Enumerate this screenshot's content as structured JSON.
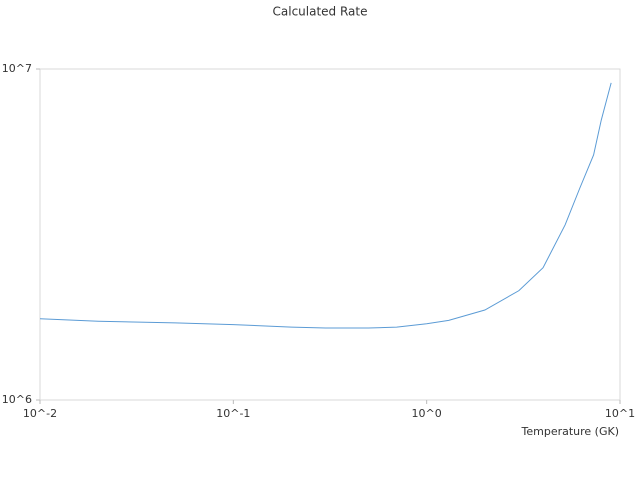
{
  "chart_data": {
    "type": "line",
    "title": "Calculated Rate",
    "x_label": "Temperature (GK)",
    "x_log": true,
    "y_log": true,
    "xlim": [
      0.01,
      10
    ],
    "ylim": [
      1000000,
      10000000
    ],
    "xticks": [
      {
        "value": 0.01,
        "label": "10^-2"
      },
      {
        "value": 0.1,
        "label": "10^-1"
      },
      {
        "value": 1,
        "label": "10^0"
      },
      {
        "value": 10,
        "label": "10^1"
      }
    ],
    "yticks": [
      {
        "value": 1000000,
        "label": "10^6"
      },
      {
        "value": 10000000,
        "label": "10^7"
      }
    ],
    "grid": false,
    "series": [
      {
        "color": "#5b9bd5",
        "x": [
          0.01,
          0.02,
          0.05,
          0.1,
          0.2,
          0.3,
          0.5,
          0.7,
          1,
          1.3,
          2,
          3,
          4,
          5.2,
          6.2,
          7.3,
          8,
          9
        ],
        "values": [
          1760000,
          1730000,
          1710000,
          1690000,
          1660000,
          1650000,
          1650000,
          1660000,
          1700000,
          1740000,
          1870000,
          2140000,
          2510000,
          3380000,
          4370000,
          5500000,
          7010000,
          9080000
        ]
      }
    ]
  }
}
